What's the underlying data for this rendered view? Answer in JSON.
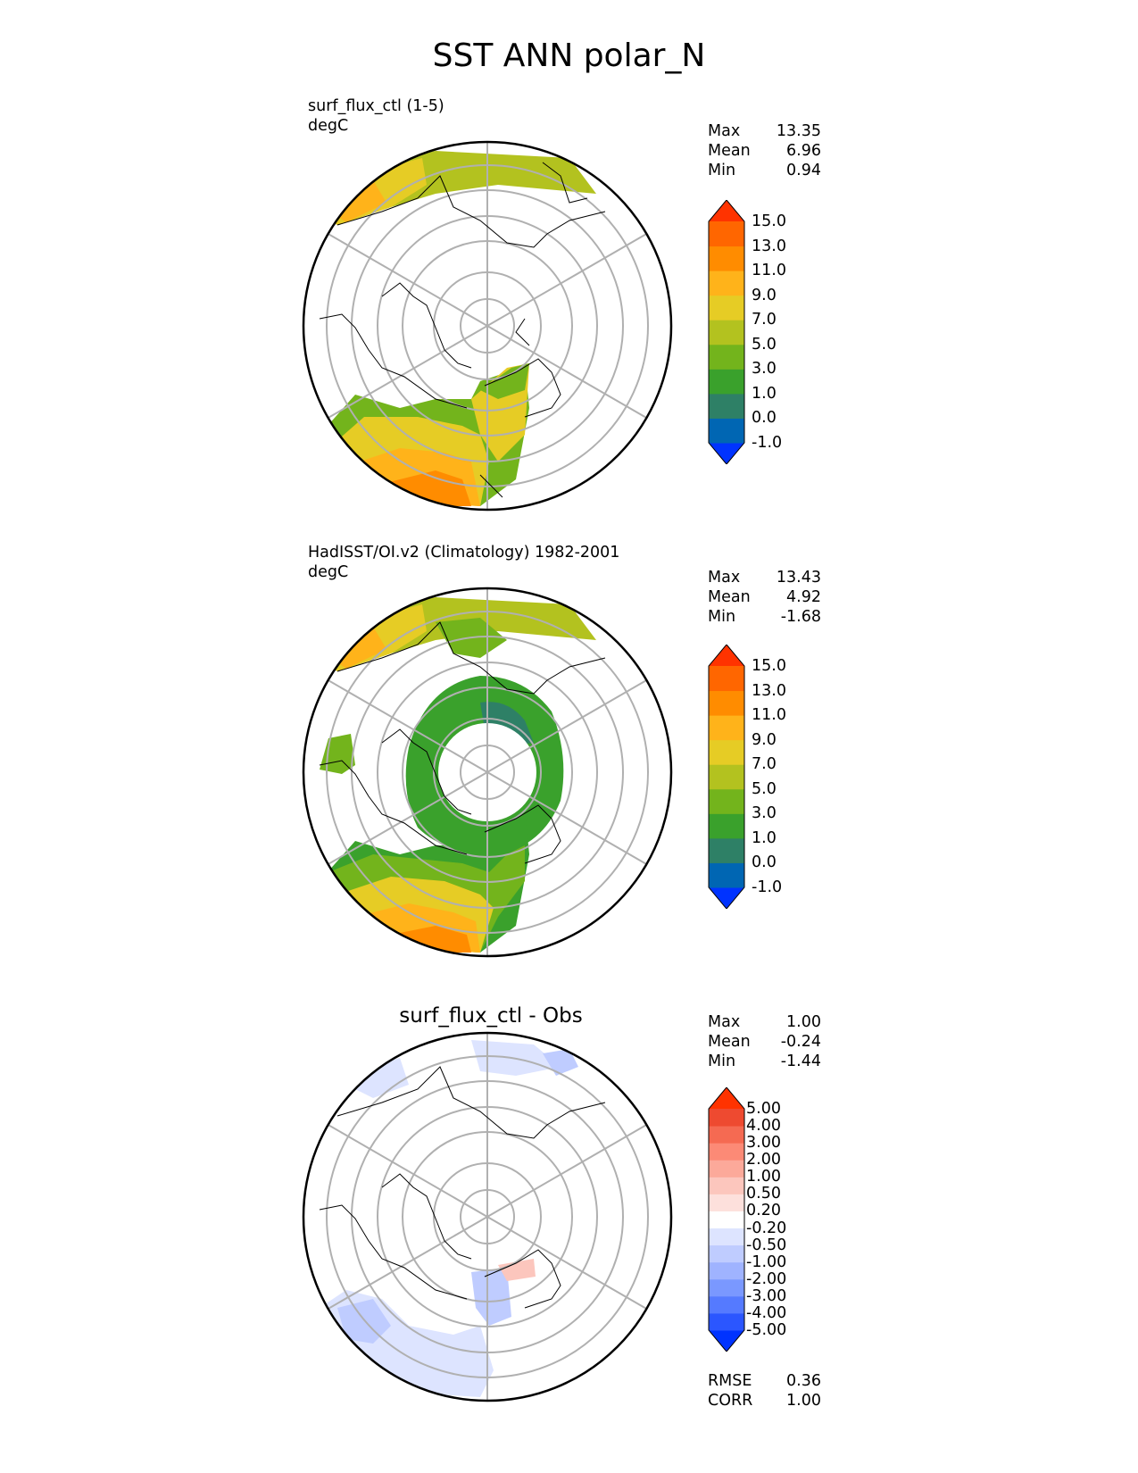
{
  "title": "SST ANN polar_N",
  "panels": [
    {
      "label1": "surf_flux_ctl (1-5)",
      "label2": "degC",
      "stats": [
        {
          "name": "Max",
          "value": "13.35"
        },
        {
          "name": "Mean",
          "value": "6.96"
        },
        {
          "name": "Min",
          "value": "0.94"
        }
      ]
    },
    {
      "label1": "HadISST/OI.v2 (Climatology) 1982-2001",
      "label2": "degC",
      "stats": [
        {
          "name": "Max",
          "value": "13.43"
        },
        {
          "name": "Mean",
          "value": "4.92"
        },
        {
          "name": "Min",
          "value": "-1.68"
        }
      ]
    },
    {
      "title": "surf_flux_ctl - Obs",
      "stats": [
        {
          "name": "Max",
          "value": "1.00"
        },
        {
          "name": "Mean",
          "value": "-0.24"
        },
        {
          "name": "Min",
          "value": "-1.44"
        }
      ],
      "footer": [
        {
          "name": "RMSE",
          "value": "0.36"
        },
        {
          "name": "CORR",
          "value": "1.00"
        }
      ]
    }
  ],
  "sst_colorbar": {
    "colors": [
      "#0033ff",
      "#0066b3",
      "#2e8066",
      "#3aa12c",
      "#73b41c",
      "#b3c21f",
      "#e6cc25",
      "#ffb31a",
      "#ff8c00",
      "#ff6600",
      "#ff3300"
    ],
    "ticks": [
      "-1.0",
      "0.0",
      "1.0",
      "3.0",
      "5.0",
      "7.0",
      "9.0",
      "11.0",
      "13.0",
      "15.0"
    ]
  },
  "diff_colorbar": {
    "colors": [
      "#0033ff",
      "#2b56ff",
      "#557aff",
      "#7a98ff",
      "#9fb3ff",
      "#bfccff",
      "#dde4ff",
      "#ffffff",
      "#fde0dc",
      "#fcc6bd",
      "#fca99a",
      "#fc8a76",
      "#f56a52",
      "#ee4a30",
      "#ff3300"
    ],
    "ticks": [
      "-5.00",
      "-4.00",
      "-3.00",
      "-2.00",
      "-1.00",
      "-0.50",
      "-0.20",
      "0.20",
      "0.50",
      "1.00",
      "2.00",
      "3.00",
      "4.00",
      "5.00"
    ]
  }
}
